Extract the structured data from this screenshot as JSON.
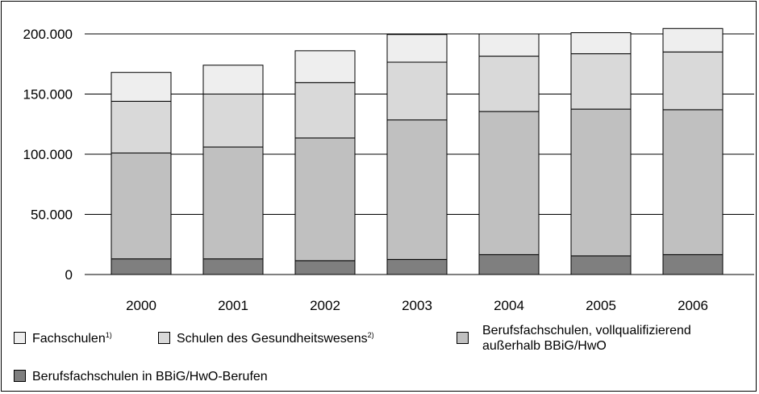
{
  "chart_data": {
    "type": "bar",
    "stacked": true,
    "categories": [
      "2000",
      "2001",
      "2002",
      "2003",
      "2004",
      "2005",
      "2006"
    ],
    "series": [
      {
        "name": "Berufsfachschulen in BBiG/HwO-Berufen",
        "color": "#7f7f7f",
        "values": [
          13000,
          13000,
          11500,
          12500,
          16500,
          15500,
          16500
        ]
      },
      {
        "name": "Berufsfachschulen, vollqualifizierend außerhalb BBiG/HwO",
        "color": "#c0c0c0",
        "values": [
          88000,
          93000,
          102000,
          116000,
          119000,
          122000,
          120500
        ]
      },
      {
        "name": "Schulen des Gesundheitswesens",
        "note": "2)",
        "color": "#d9d9d9",
        "values": [
          43000,
          44000,
          46000,
          48000,
          46000,
          46000,
          48000
        ]
      },
      {
        "name": "Fachschulen",
        "note": "1)",
        "color": "#eeeeee",
        "values": [
          24000,
          24000,
          26500,
          23000,
          18500,
          17500,
          19500
        ]
      }
    ],
    "ylim": [
      0,
      200000
    ],
    "yticks": [
      {
        "value": 0,
        "label": "0"
      },
      {
        "value": 50000,
        "label": "50.000"
      },
      {
        "value": 100000,
        "label": "100.000"
      },
      {
        "value": 150000,
        "label": "150.000"
      },
      {
        "value": 200000,
        "label": "200.000"
      }
    ],
    "grid": true,
    "legend_position": "bottom"
  },
  "legend": {
    "fachschulen": "Fachschulen",
    "fachschulen_note": "1)",
    "gesundheit": "Schulen des Gesundheitswesens",
    "gesundheit_note": "2)",
    "vollqual_line1": "Berufsfachschulen, vollqualifizierend",
    "vollqual_line2": "außerhalb BBiG/HwO",
    "bbig": "Berufsfachschulen in BBiG/HwO-Berufen"
  },
  "colors": {
    "fachschulen": "#eeeeee",
    "gesundheit": "#d9d9d9",
    "vollqual": "#c0c0c0",
    "bbig": "#7f7f7f"
  }
}
